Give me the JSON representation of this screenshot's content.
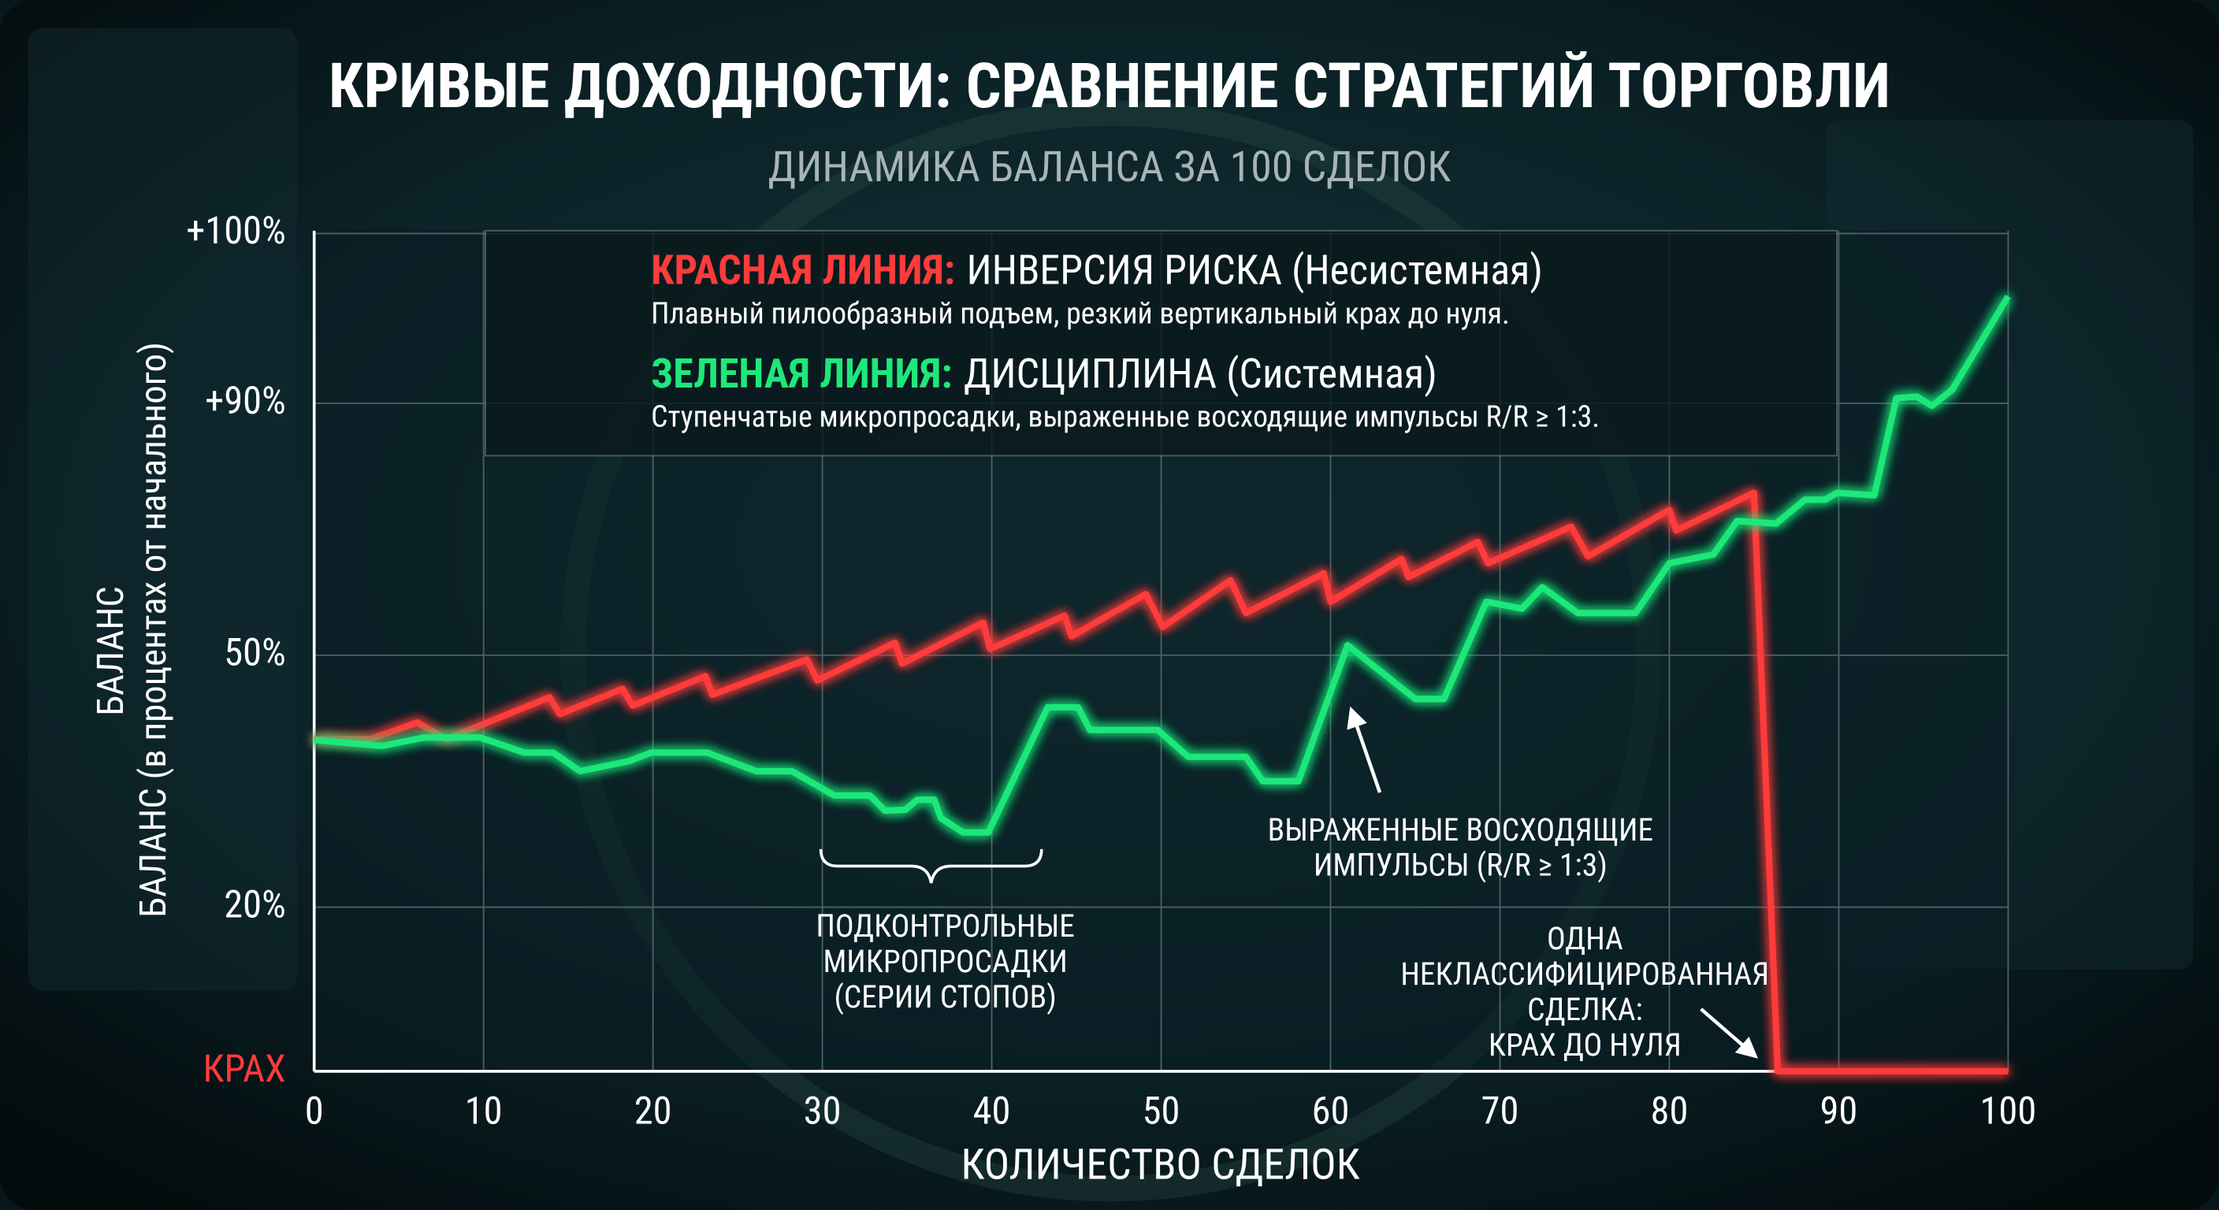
{
  "chart_data": {
    "type": "line",
    "title": "КРИВЫЕ ДОХОДНОСТИ: СРАВНЕНИЕ СТРАТЕГИЙ ТОРГОВЛИ",
    "subtitle": "ДИНАМИКА БАЛАНСА ЗА 100 СДЕЛОК",
    "ylabel": [
      "БАЛАНС",
      "БАЛАНС (в процентах от начального)"
    ],
    "xlabel": "КОЛИЧЕСТВО СДЕЛОК",
    "xlim": [
      0,
      100
    ],
    "xticks": [
      0,
      10,
      20,
      30,
      40,
      50,
      60,
      70,
      80,
      90,
      100
    ],
    "ylim": [
      0,
      100
    ],
    "yticks": [
      {
        "value": 0,
        "label": "КРАХ"
      },
      {
        "value": 20,
        "label": "20%"
      },
      {
        "value": 50,
        "label": "50%"
      },
      {
        "value": 90,
        "label": "+90%"
      },
      {
        "value": 100,
        "label": "+100%"
      }
    ],
    "grid": true,
    "series": [
      {
        "name": "КРАСНАЯ ЛИНИЯ:",
        "label": "ИНВЕРСИЯ РИСКА (Несистемная)",
        "description": "Плавный пилообразный подъем, резкий вертикальный крах до нуля.",
        "color": "#ff3b3b",
        "x": [
          0,
          3.3,
          6.1,
          7.8,
          13.9,
          14.5,
          18.2,
          18.8,
          23.1,
          23.5,
          29.1,
          29.7,
          34.3,
          34.7,
          39.5,
          39.9,
          44.3,
          44.7,
          49.1,
          50.1,
          54.1,
          55,
          59.6,
          60,
          64.2,
          64.6,
          68.7,
          69.3,
          74.2,
          75.2,
          80,
          80.4,
          85,
          86.4,
          100
        ],
        "values": [
          40,
          40,
          42,
          40,
          45,
          43,
          46,
          44,
          47.5,
          45.3,
          49.5,
          47,
          52,
          49,
          55.2,
          51,
          56.3,
          53,
          59.7,
          54.5,
          61.9,
          56.7,
          63,
          58.5,
          65.3,
          62.4,
          68,
          64.6,
          70.4,
          65.7,
          73.1,
          69.8,
          75.8,
          0,
          0
        ]
      },
      {
        "name": "ЗЕЛЕНАЯ ЛИНИЯ:",
        "label": "ДИСЦИПЛИНА (Системная)",
        "description": "Ступенчатые микропросадки, выраженные восходящие импульсы R/R ≥ 1:3.",
        "color": "#1fe87a",
        "x": [
          0,
          4,
          6.5,
          9.8,
          12.4,
          14.1,
          15.7,
          18.6,
          19.9,
          23.2,
          26.1,
          28.2,
          30.7,
          32.8,
          33.7,
          34.9,
          35.6,
          36.6,
          37,
          38.3,
          39.8,
          43.3,
          45.1,
          45.8,
          49.8,
          51.6,
          55,
          56,
          58.1,
          61,
          65,
          66.7,
          69.2,
          71.3,
          72.5,
          74.6,
          78,
          80,
          82.6,
          84,
          86.3,
          88,
          89.2,
          89.9,
          92.1,
          93.4,
          94.6,
          95.5,
          96.7,
          100
        ],
        "values": [
          39.9,
          39.2,
          40.2,
          40.2,
          38.4,
          38.4,
          36.2,
          37.4,
          38.4,
          38.4,
          36.2,
          36.2,
          33.3,
          33.3,
          31.5,
          31.6,
          32.8,
          32.8,
          30.6,
          28.9,
          28.9,
          43.8,
          43.8,
          41.1,
          41.1,
          37.9,
          37.9,
          35,
          35,
          51.6,
          44.8,
          44.8,
          58.5,
          57.4,
          60.8,
          56.7,
          56.7,
          64.6,
          66,
          71.3,
          70.9,
          74.7,
          74.7,
          75.8,
          75.4,
          90.3,
          90.4,
          89.6,
          90.8,
          96.3
        ]
      }
    ],
    "annotations": [
      {
        "lines": [
          "ПОДКОНТРОЛЬНЫЕ",
          "МИКРОПРОСАДКИ",
          "(СЕРИИ СТОПОВ)"
        ]
      },
      {
        "lines": [
          "ВЫРАЖЕННЫЕ ВОСХОДЯЩИЕ",
          "ИМПУЛЬСЫ (R/R ≥ 1:3)"
        ]
      },
      {
        "lines": [
          "ОДНА",
          "НЕКЛАССИФИЦИРОВАННАЯ",
          "СДЕЛКА:",
          "КРАХ ДО НУЛЯ"
        ]
      }
    ]
  }
}
